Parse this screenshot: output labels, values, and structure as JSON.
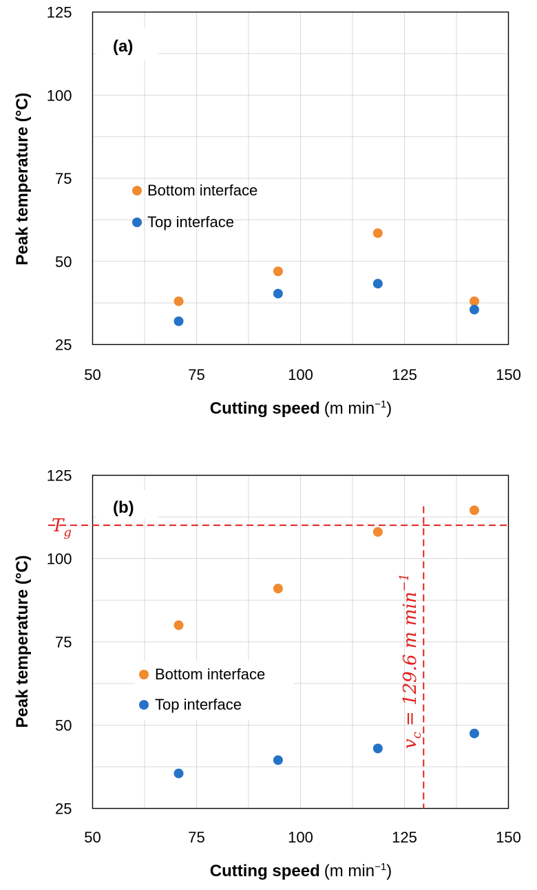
{
  "colors": {
    "orange": "#F28A30",
    "blue": "#2672C8",
    "red": "#E0201B",
    "grid": "#D9D9D9",
    "axis": "#000000"
  },
  "chart_data": [
    {
      "type": "scatter",
      "panel_label": "(a)",
      "xlabel": "Cutting speed",
      "xunit": "(m min",
      "xunit_sup": "−1",
      "xunit_close": ")",
      "ylabel": "Peak temperature (°C)",
      "xlim": [
        50,
        150
      ],
      "ylim": [
        25,
        125
      ],
      "xticks": [
        50,
        75,
        100,
        125,
        150
      ],
      "yticks": [
        25,
        50,
        75,
        100,
        125
      ],
      "grid": true,
      "series": [
        {
          "name": "Bottom interface",
          "color": "#F28A30",
          "x": [
            70.7,
            94.6,
            118.6,
            141.8
          ],
          "y": [
            38,
            47,
            58.5,
            38
          ]
        },
        {
          "name": "Top interface",
          "color": "#2672C8",
          "x": [
            70.7,
            94.6,
            118.6,
            141.8
          ],
          "y": [
            32,
            40.3,
            43.3,
            35.5
          ]
        }
      ],
      "legend": {
        "items": [
          "Bottom interface",
          "Top interface"
        ]
      }
    },
    {
      "type": "scatter",
      "panel_label": "(b)",
      "xlabel": "Cutting speed",
      "xunit": "(m min",
      "xunit_sup": "−1",
      "xunit_close": ")",
      "ylabel": "Peak temperature (°C)",
      "xlim": [
        50,
        150
      ],
      "ylim": [
        25,
        125
      ],
      "xticks": [
        50,
        75,
        100,
        125,
        150
      ],
      "yticks": [
        25,
        50,
        75,
        100,
        125
      ],
      "grid": true,
      "series": [
        {
          "name": "Bottom interface",
          "color": "#F28A30",
          "x": [
            70.7,
            94.6,
            118.6,
            141.8
          ],
          "y": [
            80,
            91,
            108,
            114.5
          ]
        },
        {
          "name": "Top interface",
          "color": "#2672C8",
          "x": [
            70.7,
            94.6,
            118.6,
            141.8
          ],
          "y": [
            35.5,
            39.5,
            43,
            47.5
          ]
        }
      ],
      "legend": {
        "items": [
          "Bottom interface",
          "Top interface"
        ]
      },
      "reference_lines": {
        "tg_value": 110,
        "tg_label": "T",
        "tg_sub": "g",
        "vc_value": 129.6,
        "vc_label": "v",
        "vc_sub": "c",
        "vc_text": " = 129.6 m min",
        "vc_sup": "−1"
      }
    }
  ]
}
